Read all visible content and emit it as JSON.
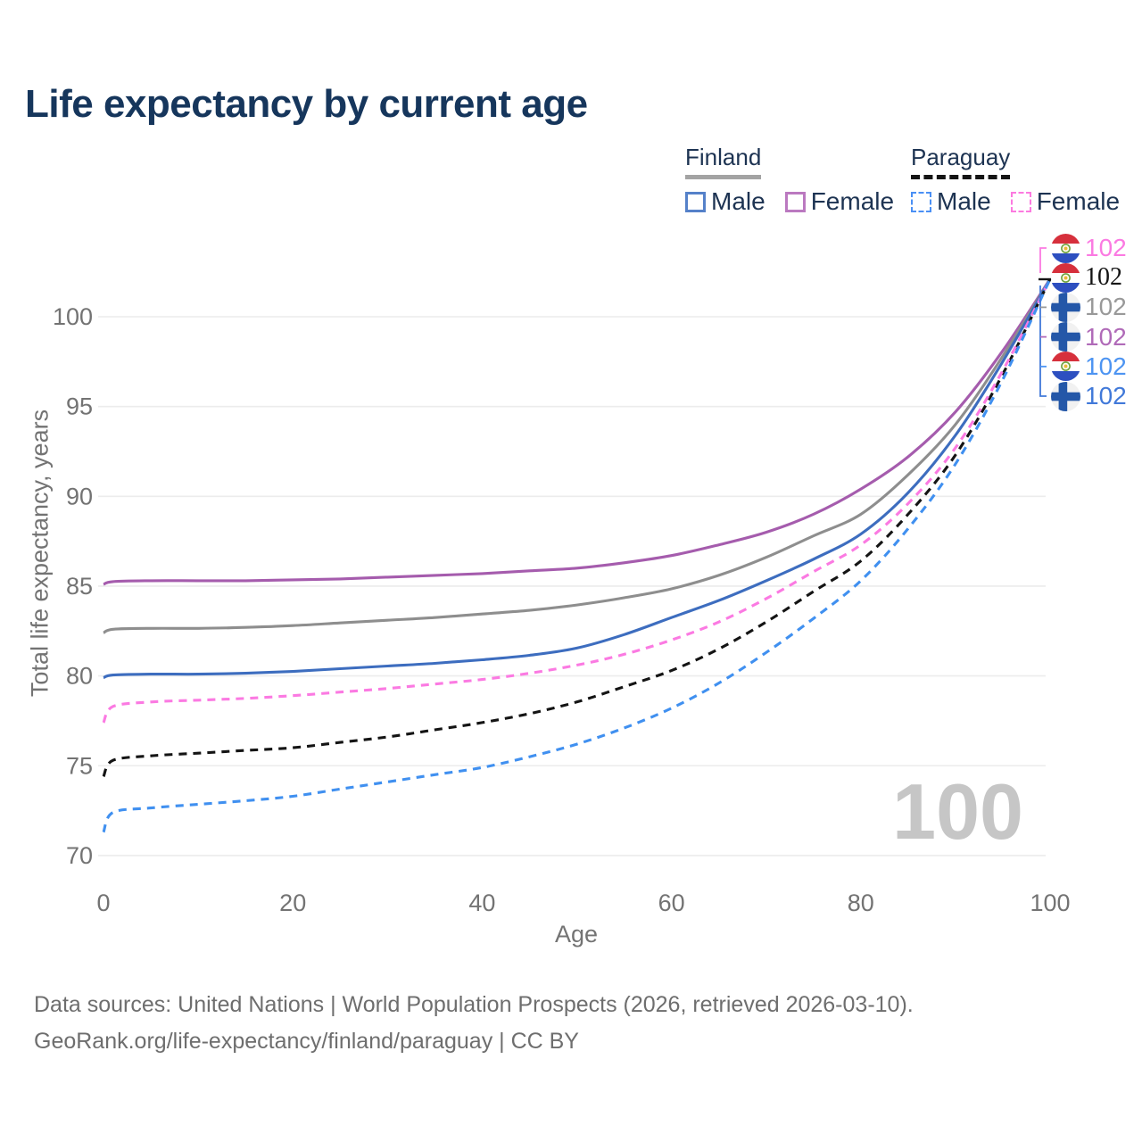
{
  "title": "Life expectancy by current age",
  "legend": {
    "groups": [
      {
        "name": "Finland",
        "items": [
          {
            "label": "Male",
            "color": "#5581c9",
            "dashed": false
          },
          {
            "label": "Female",
            "color": "#bb79c0",
            "dashed": false
          }
        ]
      },
      {
        "name": "Paraguay",
        "items": [
          {
            "label": "Male",
            "color": "#4a90f5",
            "dashed": true
          },
          {
            "label": "Female",
            "color": "#fc7ae0",
            "dashed": true
          }
        ]
      }
    ]
  },
  "chart_data": {
    "type": "line",
    "title": "Life expectancy by current age",
    "xlabel": "Age",
    "ylabel": "Total life expectancy, years",
    "xlim": [
      0,
      100
    ],
    "ylim": [
      70,
      102.5
    ],
    "xticks": [
      0,
      20,
      40,
      60,
      80,
      100
    ],
    "yticks": [
      70,
      75,
      80,
      85,
      90,
      95,
      100
    ],
    "grid": "horizontal-only",
    "age_indicator": "100",
    "x": [
      0,
      1,
      5,
      10,
      15,
      20,
      25,
      30,
      35,
      40,
      45,
      50,
      55,
      60,
      65,
      70,
      75,
      80,
      85,
      90,
      95,
      100
    ],
    "series": [
      {
        "id": "finland-female",
        "name": "Finland Female",
        "country": "Finland",
        "sex": "Female",
        "color": "#a55cad",
        "dashed": false,
        "end_value": 102,
        "values": [
          85.1,
          85.25,
          85.3,
          85.3,
          85.3,
          85.35,
          85.4,
          85.5,
          85.6,
          85.7,
          85.85,
          86.0,
          86.3,
          86.7,
          87.3,
          88.0,
          89.0,
          90.4,
          92.2,
          94.7,
          98.1,
          102.1
        ]
      },
      {
        "id": "finland-both",
        "name": "Finland Both sexes",
        "country": "Finland",
        "sex": "Both",
        "color": "#8e8e8e",
        "dashed": false,
        "end_value": 102,
        "values": [
          82.4,
          82.6,
          82.65,
          82.65,
          82.7,
          82.8,
          82.95,
          83.1,
          83.25,
          83.45,
          83.65,
          83.95,
          84.35,
          84.85,
          85.6,
          86.6,
          87.8,
          89.0,
          91.2,
          94.0,
          97.8,
          102.1
        ]
      },
      {
        "id": "finland-male",
        "name": "Finland Male",
        "country": "Finland",
        "sex": "Male",
        "color": "#3d6dbf",
        "dashed": false,
        "end_value": 102,
        "values": [
          79.9,
          80.05,
          80.1,
          80.1,
          80.15,
          80.25,
          80.4,
          80.55,
          80.7,
          80.9,
          81.15,
          81.55,
          82.3,
          83.25,
          84.2,
          85.3,
          86.5,
          87.9,
          90.2,
          93.4,
          97.5,
          102.1
        ]
      },
      {
        "id": "paraguay-both",
        "name": "Paraguay Both sexes",
        "country": "Paraguay",
        "sex": "Both",
        "color": "#141414",
        "dashed": true,
        "end_value": 102,
        "values": [
          74.4,
          75.3,
          75.55,
          75.7,
          75.85,
          76.0,
          76.3,
          76.6,
          77.0,
          77.4,
          77.9,
          78.55,
          79.4,
          80.3,
          81.5,
          83.0,
          84.7,
          86.4,
          89.0,
          92.3,
          96.8,
          102.1
        ]
      },
      {
        "id": "paraguay-female",
        "name": "Paraguay Female",
        "country": "Paraguay",
        "sex": "Female",
        "color": "#fb7ae2",
        "dashed": true,
        "end_value": 102,
        "values": [
          77.4,
          78.3,
          78.55,
          78.65,
          78.75,
          78.9,
          79.1,
          79.3,
          79.55,
          79.8,
          80.15,
          80.6,
          81.2,
          82.0,
          83.0,
          84.3,
          85.8,
          87.3,
          89.6,
          92.7,
          97.0,
          102.1
        ]
      },
      {
        "id": "paraguay-male",
        "name": "Paraguay Male",
        "country": "Paraguay",
        "sex": "Male",
        "color": "#4090f0",
        "dashed": true,
        "end_value": 102,
        "values": [
          71.3,
          72.4,
          72.65,
          72.85,
          73.05,
          73.3,
          73.7,
          74.1,
          74.5,
          74.9,
          75.5,
          76.2,
          77.1,
          78.2,
          79.6,
          81.3,
          83.2,
          85.3,
          88.2,
          91.8,
          96.5,
          102.1
        ]
      }
    ]
  },
  "end_labels": [
    {
      "flag": "paraguay",
      "series": "paraguay-female",
      "value": "102",
      "color": "#fb7ae2",
      "emphasis": false
    },
    {
      "flag": "paraguay",
      "series": "paraguay-both",
      "value": "102",
      "color": "#141414",
      "emphasis": true
    },
    {
      "flag": "finland",
      "series": "finland-both",
      "value": "102",
      "color": "#999999",
      "emphasis": false
    },
    {
      "flag": "finland",
      "series": "finland-female",
      "value": "102",
      "color": "#b06ab8",
      "emphasis": false
    },
    {
      "flag": "paraguay",
      "series": "paraguay-male",
      "value": "102",
      "color": "#4d94f2",
      "emphasis": false
    },
    {
      "flag": "finland",
      "series": "finland-male",
      "value": "102",
      "color": "#4179d9",
      "emphasis": false
    }
  ],
  "footer": {
    "line1": "Data sources: United Nations | World Population Prospects (2026, retrieved 2026-03-10).",
    "line2": "GeoRank.org/life-expectancy/finland/paraguay | CC BY"
  }
}
